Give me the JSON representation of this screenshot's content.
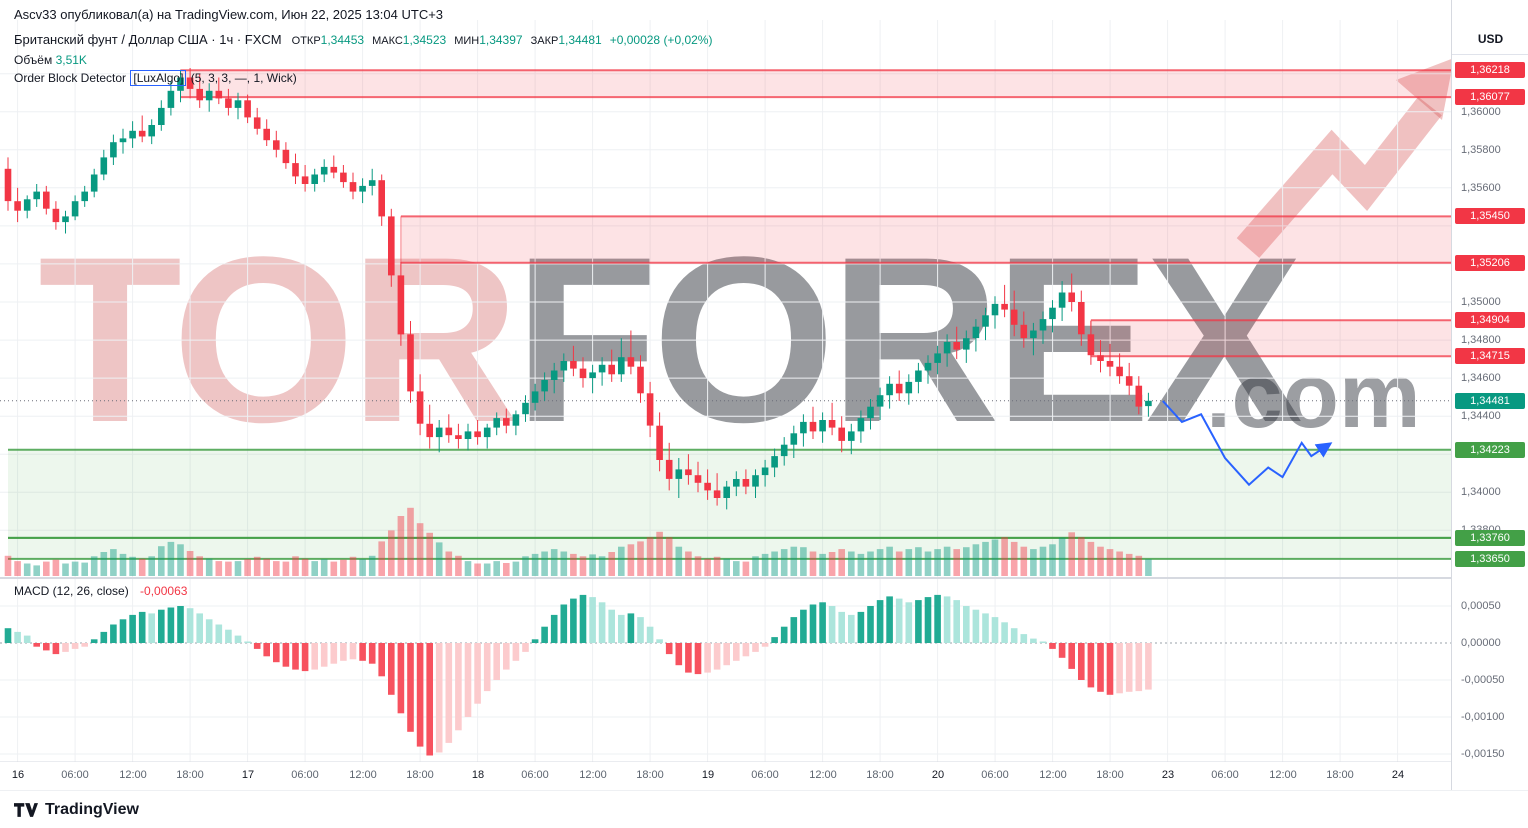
{
  "header": {
    "published": "Ascv33 опубликовал(а) на TradingView.com, Июн 22, 2025 13:04 UTC+3",
    "symbol": "Британский фунт / Доллар США · 1ч · FXCM",
    "ohlc": {
      "open_label": "ОТКР",
      "open": "1,34453",
      "high_label": "МАКС",
      "high": "1,34523",
      "low_label": "МИН",
      "low": "1,34397",
      "close_label": "ЗАКР",
      "close": "1,34481",
      "change": "+0,00028 (+0,02%)"
    },
    "volume_label": "Объём",
    "volume_value": "3,51K",
    "indicator_title_pre": "Order Block Detector ",
    "indicator_title_box": "[LuxAlgo]",
    "indicator_title_post": " (5, 3, 3, —, 1, Wick)"
  },
  "watermark": {
    "part1": "TOR",
    "part2": "FOREX",
    "part3": ".com"
  },
  "price_axis": {
    "currency": "USD",
    "gridline_labels": [
      {
        "price": 1.36,
        "label": "1,36000"
      },
      {
        "price": 1.358,
        "label": "1,35800"
      },
      {
        "price": 1.356,
        "label": "1,35600"
      },
      {
        "price": 1.35,
        "label": "1,35000"
      },
      {
        "price": 1.348,
        "label": "1,34800"
      },
      {
        "price": 1.346,
        "label": "1,34600"
      },
      {
        "price": 1.344,
        "label": "1,34400"
      },
      {
        "price": 1.34,
        "label": "1,34000"
      },
      {
        "price": 1.338,
        "label": "1,33800"
      }
    ],
    "badges": [
      {
        "price": 1.36218,
        "label": "1,36218",
        "color": "#f23645"
      },
      {
        "price": 1.36077,
        "label": "1,36077",
        "color": "#f23645"
      },
      {
        "price": 1.3545,
        "label": "1,35450",
        "color": "#f23645"
      },
      {
        "price": 1.35206,
        "label": "1,35206",
        "color": "#f23645"
      },
      {
        "price": 1.34904,
        "label": "1,34904",
        "color": "#f23645"
      },
      {
        "price": 1.34715,
        "label": "1,34715",
        "color": "#f23645"
      },
      {
        "price": 1.34481,
        "label": "1,34481",
        "color": "#089981"
      },
      {
        "price": 1.34223,
        "label": "1,34223",
        "color": "#43a047"
      },
      {
        "price": 1.3376,
        "label": "1,33760",
        "color": "#43a047"
      },
      {
        "price": 1.3365,
        "label": "1,33650",
        "color": "#43a047"
      }
    ]
  },
  "macd": {
    "label": "MACD (12, 26, close)",
    "value": "-0,00063",
    "axis_labels": [
      {
        "v": 0.0005,
        "label": "0,00050"
      },
      {
        "v": 0,
        "label": "0,00000"
      },
      {
        "v": -0.0005,
        "label": "-0,00050"
      },
      {
        "v": -0.001,
        "label": "-0,00100"
      },
      {
        "v": -0.0015,
        "label": "-0,00150"
      }
    ]
  },
  "time_axis": {
    "labels": [
      "16",
      "06:00",
      "12:00",
      "18:00",
      "17",
      "06:00",
      "12:00",
      "18:00",
      "18",
      "06:00",
      "12:00",
      "18:00",
      "19",
      "06:00",
      "12:00",
      "18:00",
      "20",
      "06:00",
      "12:00",
      "18:00",
      "23",
      "06:00",
      "12:00",
      "18:00",
      "24"
    ]
  },
  "footer": {
    "brand": "TradingView"
  },
  "chart_data": {
    "type": "candlestick",
    "title": "Британский фунт / Доллар США, 1ч, FXCM",
    "timeframe": "1h",
    "session_ohlc": {
      "open": 1.34453,
      "high": 1.34523,
      "low": 1.34397,
      "close": 1.34481,
      "change": 0.00028,
      "change_pct": 0.02
    },
    "close_price": 1.34481,
    "volume_current_k": 3.51,
    "macd_current": -0.00063,
    "candles": [
      [
        1.357,
        1.3576,
        1.3548,
        1.3553
      ],
      [
        1.3553,
        1.356,
        1.3542,
        1.3548
      ],
      [
        1.3548,
        1.3556,
        1.3544,
        1.3554
      ],
      [
        1.3554,
        1.3562,
        1.355,
        1.3558
      ],
      [
        1.3558,
        1.3561,
        1.3546,
        1.3549
      ],
      [
        1.3549,
        1.3553,
        1.3538,
        1.3542
      ],
      [
        1.3542,
        1.3548,
        1.3536,
        1.3545
      ],
      [
        1.3545,
        1.3556,
        1.3543,
        1.3553
      ],
      [
        1.3553,
        1.3561,
        1.355,
        1.3558
      ],
      [
        1.3558,
        1.357,
        1.3555,
        1.3567
      ],
      [
        1.3567,
        1.358,
        1.3564,
        1.3576
      ],
      [
        1.3576,
        1.3588,
        1.3572,
        1.3584
      ],
      [
        1.3584,
        1.3591,
        1.3578,
        1.3586
      ],
      [
        1.3586,
        1.3595,
        1.3581,
        1.359
      ],
      [
        1.359,
        1.3598,
        1.3584,
        1.3587
      ],
      [
        1.3587,
        1.3596,
        1.3583,
        1.3593
      ],
      [
        1.3593,
        1.3606,
        1.359,
        1.3602
      ],
      [
        1.3602,
        1.3616,
        1.3598,
        1.3611
      ],
      [
        1.3611,
        1.3622,
        1.3605,
        1.3618
      ],
      [
        1.3618,
        1.3623,
        1.3607,
        1.3612
      ],
      [
        1.3612,
        1.362,
        1.3602,
        1.3606
      ],
      [
        1.3606,
        1.3615,
        1.36,
        1.3611
      ],
      [
        1.3611,
        1.3618,
        1.3604,
        1.3607
      ],
      [
        1.3607,
        1.3612,
        1.3598,
        1.3602
      ],
      [
        1.3602,
        1.361,
        1.3596,
        1.3606
      ],
      [
        1.3606,
        1.3609,
        1.3594,
        1.3597
      ],
      [
        1.3597,
        1.3602,
        1.3588,
        1.3591
      ],
      [
        1.3591,
        1.3596,
        1.3582,
        1.3585
      ],
      [
        1.3585,
        1.359,
        1.3576,
        1.358
      ],
      [
        1.358,
        1.3584,
        1.357,
        1.3573
      ],
      [
        1.3573,
        1.3578,
        1.3562,
        1.3566
      ],
      [
        1.3566,
        1.3572,
        1.3558,
        1.3562
      ],
      [
        1.3562,
        1.357,
        1.3558,
        1.3567
      ],
      [
        1.3567,
        1.3575,
        1.3563,
        1.3571
      ],
      [
        1.3571,
        1.3577,
        1.3565,
        1.3568
      ],
      [
        1.3568,
        1.3572,
        1.356,
        1.3563
      ],
      [
        1.3563,
        1.3568,
        1.3554,
        1.3558
      ],
      [
        1.3558,
        1.3565,
        1.3552,
        1.3561
      ],
      [
        1.3561,
        1.357,
        1.3556,
        1.3564
      ],
      [
        1.3564,
        1.3567,
        1.354,
        1.3545
      ],
      [
        1.3545,
        1.3549,
        1.3508,
        1.3514
      ],
      [
        1.3514,
        1.3521,
        1.3477,
        1.3483
      ],
      [
        1.3483,
        1.349,
        1.3447,
        1.3453
      ],
      [
        1.3453,
        1.3462,
        1.343,
        1.3436
      ],
      [
        1.3436,
        1.3446,
        1.3423,
        1.3429
      ],
      [
        1.3429,
        1.3438,
        1.3421,
        1.3434
      ],
      [
        1.3434,
        1.3441,
        1.3426,
        1.343
      ],
      [
        1.343,
        1.3436,
        1.3423,
        1.3428
      ],
      [
        1.3428,
        1.3436,
        1.3422,
        1.3432
      ],
      [
        1.3432,
        1.3438,
        1.3425,
        1.3429
      ],
      [
        1.3429,
        1.3436,
        1.3423,
        1.3434
      ],
      [
        1.3434,
        1.3442,
        1.343,
        1.3439
      ],
      [
        1.3439,
        1.3444,
        1.3431,
        1.3435
      ],
      [
        1.3435,
        1.3443,
        1.343,
        1.3441
      ],
      [
        1.3441,
        1.3451,
        1.3437,
        1.3447
      ],
      [
        1.3447,
        1.3457,
        1.3443,
        1.3453
      ],
      [
        1.3453,
        1.3463,
        1.3448,
        1.3459
      ],
      [
        1.3459,
        1.3468,
        1.3452,
        1.3464
      ],
      [
        1.3464,
        1.3473,
        1.3458,
        1.3469
      ],
      [
        1.3469,
        1.3477,
        1.3461,
        1.3465
      ],
      [
        1.3465,
        1.3471,
        1.3455,
        1.346
      ],
      [
        1.346,
        1.3467,
        1.3452,
        1.3463
      ],
      [
        1.3463,
        1.3471,
        1.3456,
        1.3467
      ],
      [
        1.3467,
        1.3475,
        1.3458,
        1.3462
      ],
      [
        1.3462,
        1.3481,
        1.3458,
        1.3471
      ],
      [
        1.3471,
        1.3485,
        1.3462,
        1.3466
      ],
      [
        1.3466,
        1.3472,
        1.3447,
        1.3452
      ],
      [
        1.3452,
        1.3458,
        1.3429,
        1.3435
      ],
      [
        1.3435,
        1.3442,
        1.3411,
        1.3417
      ],
      [
        1.3417,
        1.3426,
        1.3401,
        1.3407
      ],
      [
        1.3407,
        1.3418,
        1.3397,
        1.3412
      ],
      [
        1.3412,
        1.342,
        1.3404,
        1.3409
      ],
      [
        1.3409,
        1.3416,
        1.34,
        1.3405
      ],
      [
        1.3405,
        1.3412,
        1.3396,
        1.3401
      ],
      [
        1.3401,
        1.341,
        1.3393,
        1.3397
      ],
      [
        1.3397,
        1.3406,
        1.3391,
        1.3403
      ],
      [
        1.3403,
        1.3411,
        1.3398,
        1.3407
      ],
      [
        1.3407,
        1.3412,
        1.3399,
        1.3403
      ],
      [
        1.3403,
        1.3412,
        1.3397,
        1.3409
      ],
      [
        1.3409,
        1.3417,
        1.3403,
        1.3413
      ],
      [
        1.3413,
        1.3423,
        1.3408,
        1.3419
      ],
      [
        1.3419,
        1.3429,
        1.3414,
        1.3425
      ],
      [
        1.3425,
        1.3435,
        1.3418,
        1.3431
      ],
      [
        1.3431,
        1.3441,
        1.3424,
        1.3437
      ],
      [
        1.3437,
        1.3445,
        1.3428,
        1.3432
      ],
      [
        1.3432,
        1.3442,
        1.3426,
        1.3438
      ],
      [
        1.3438,
        1.3447,
        1.343,
        1.3434
      ],
      [
        1.3434,
        1.344,
        1.3421,
        1.3427
      ],
      [
        1.3427,
        1.3436,
        1.342,
        1.3432
      ],
      [
        1.3432,
        1.3443,
        1.3426,
        1.3439
      ],
      [
        1.3439,
        1.3449,
        1.3433,
        1.3445
      ],
      [
        1.3445,
        1.3455,
        1.3438,
        1.3451
      ],
      [
        1.3451,
        1.3461,
        1.3444,
        1.3457
      ],
      [
        1.3457,
        1.3464,
        1.3448,
        1.3452
      ],
      [
        1.3452,
        1.3462,
        1.3446,
        1.3458
      ],
      [
        1.3458,
        1.3468,
        1.3452,
        1.3464
      ],
      [
        1.3464,
        1.3472,
        1.3457,
        1.3468
      ],
      [
        1.3468,
        1.3477,
        1.3462,
        1.3473
      ],
      [
        1.3473,
        1.3483,
        1.3466,
        1.3479
      ],
      [
        1.3479,
        1.3487,
        1.347,
        1.3475
      ],
      [
        1.3475,
        1.3485,
        1.3468,
        1.3481
      ],
      [
        1.3481,
        1.3491,
        1.3474,
        1.3487
      ],
      [
        1.3487,
        1.3497,
        1.348,
        1.3493
      ],
      [
        1.3493,
        1.3503,
        1.3486,
        1.3499
      ],
      [
        1.3499,
        1.3509,
        1.3492,
        1.3496
      ],
      [
        1.3496,
        1.3506,
        1.3482,
        1.3488
      ],
      [
        1.3488,
        1.3495,
        1.3476,
        1.3481
      ],
      [
        1.3481,
        1.3489,
        1.3472,
        1.3485
      ],
      [
        1.3485,
        1.3495,
        1.3478,
        1.3491
      ],
      [
        1.3491,
        1.3501,
        1.3484,
        1.3497
      ],
      [
        1.3497,
        1.3511,
        1.349,
        1.3505
      ],
      [
        1.3505,
        1.3515,
        1.3495,
        1.35
      ],
      [
        1.35,
        1.3506,
        1.3477,
        1.3483
      ],
      [
        1.3483,
        1.349,
        1.3467,
        1.3472
      ],
      [
        1.3472,
        1.348,
        1.3463,
        1.3469
      ],
      [
        1.3469,
        1.3478,
        1.3461,
        1.3466
      ],
      [
        1.3466,
        1.3473,
        1.3457,
        1.3461
      ],
      [
        1.3461,
        1.3468,
        1.3451,
        1.3456
      ],
      [
        1.3456,
        1.3461,
        1.3441,
        1.3445
      ],
      [
        1.34453,
        1.34523,
        1.34397,
        1.34481
      ]
    ],
    "volumes": [
      4.2,
      3.1,
      2.6,
      2.2,
      3.0,
      3.4,
      2.6,
      3.0,
      2.8,
      4.1,
      5.0,
      5.6,
      4.6,
      4.0,
      3.6,
      4.1,
      6.2,
      7.1,
      6.6,
      5.2,
      4.1,
      3.6,
      3.1,
      3.0,
      3.1,
      3.5,
      4.0,
      3.6,
      3.1,
      3.0,
      4.1,
      3.6,
      3.1,
      3.5,
      3.0,
      3.4,
      4.0,
      3.5,
      4.2,
      7.2,
      9.5,
      12.5,
      14.2,
      11.0,
      9.0,
      7.0,
      5.1,
      4.2,
      3.1,
      2.6,
      2.6,
      3.1,
      2.7,
      3.0,
      4.1,
      4.6,
      5.1,
      5.6,
      5.1,
      4.6,
      4.1,
      4.5,
      4.1,
      5.0,
      6.1,
      6.6,
      7.2,
      8.1,
      9.2,
      8.1,
      6.1,
      5.1,
      4.1,
      3.6,
      4.0,
      3.6,
      3.1,
      3.0,
      4.1,
      4.6,
      5.1,
      5.6,
      6.1,
      6.0,
      5.1,
      4.6,
      5.0,
      5.6,
      5.1,
      4.6,
      5.1,
      5.6,
      6.1,
      5.1,
      5.6,
      6.0,
      5.1,
      5.6,
      6.1,
      5.6,
      6.0,
      6.6,
      7.1,
      7.6,
      8.1,
      7.1,
      6.1,
      5.6,
      6.1,
      6.6,
      8.0,
      9.1,
      8.1,
      7.1,
      6.1,
      5.6,
      5.1,
      4.6,
      4.2,
      3.51
    ],
    "macd_histogram": [
      0.0002,
      0.00015,
      0.0001,
      -5e-05,
      -0.0001,
      -0.00015,
      -0.00012,
      -8e-05,
      -5e-05,
      5e-05,
      0.00015,
      0.00025,
      0.00032,
      0.00038,
      0.00042,
      0.0004,
      0.00045,
      0.00048,
      0.0005,
      0.00047,
      0.0004,
      0.00032,
      0.00025,
      0.00018,
      0.0001,
      2e-05,
      -8e-05,
      -0.00018,
      -0.00026,
      -0.00032,
      -0.00036,
      -0.00038,
      -0.00036,
      -0.00032,
      -0.00028,
      -0.00024,
      -0.00022,
      -0.00024,
      -0.00028,
      -0.00045,
      -0.0007,
      -0.00095,
      -0.0012,
      -0.0014,
      -0.00152,
      -0.00148,
      -0.00135,
      -0.00118,
      -0.001,
      -0.00082,
      -0.00065,
      -0.0005,
      -0.00036,
      -0.00024,
      -0.00012,
      5e-05,
      0.00022,
      0.00038,
      0.00052,
      0.0006,
      0.00065,
      0.00062,
      0.00055,
      0.00045,
      0.00038,
      0.0004,
      0.00035,
      0.00022,
      5e-05,
      -0.00015,
      -0.0003,
      -0.0004,
      -0.00042,
      -0.0004,
      -0.00036,
      -0.0003,
      -0.00024,
      -0.00018,
      -0.00012,
      -5e-05,
      8e-05,
      0.00022,
      0.00035,
      0.00045,
      0.00052,
      0.00055,
      0.0005,
      0.00042,
      0.00038,
      0.00042,
      0.0005,
      0.00058,
      0.00063,
      0.0006,
      0.00055,
      0.00058,
      0.00062,
      0.00065,
      0.00063,
      0.00058,
      0.0005,
      0.00045,
      0.0004,
      0.00035,
      0.00028,
      0.0002,
      0.00012,
      6e-05,
      2e-05,
      -8e-05,
      -0.0002,
      -0.00035,
      -0.0005,
      -0.0006,
      -0.00066,
      -0.0007,
      -0.00068,
      -0.00066,
      -0.00065,
      -0.00063
    ],
    "red_zones": [
      {
        "top": 1.36218,
        "bottom": 1.36077,
        "start_index": 18
      },
      {
        "top": 1.3545,
        "bottom": 1.35206,
        "start_index": 41
      },
      {
        "top": 1.34904,
        "bottom": 1.34715,
        "start_index": 113
      }
    ],
    "green_zones": [
      {
        "top": 1.34223,
        "bottom": 1.3376,
        "start_index": 0
      },
      {
        "top": 1.3376,
        "bottom": 1.3365,
        "start_index": 0
      }
    ],
    "projection": [
      [
        120.5,
        1.3448
      ],
      [
        122.5,
        1.3437
      ],
      [
        124.5,
        1.3441
      ],
      [
        127,
        1.3418
      ],
      [
        129.5,
        1.3404
      ],
      [
        131.5,
        1.3413
      ],
      [
        133,
        1.3408
      ],
      [
        135,
        1.3426
      ],
      [
        136,
        1.3419
      ],
      [
        137.5,
        1.3424
      ]
    ]
  }
}
